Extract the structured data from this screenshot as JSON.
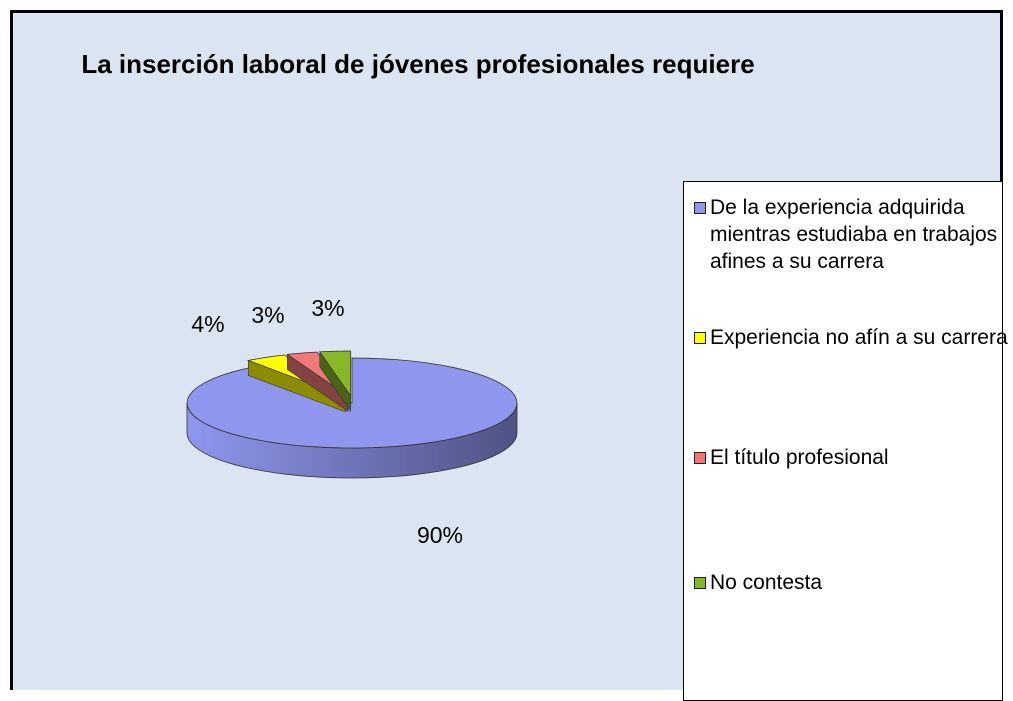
{
  "chart_data": {
    "type": "pie",
    "title": "La inserción laboral de jóvenes profesionales requiere",
    "categories": [
      "De la experiencia adquirida mientras estudiaba en trabajos afines a su carrera",
      "Experiencia no afín a su carrera",
      "El título profesional",
      "No contesta"
    ],
    "values": [
      90,
      4,
      3,
      3
    ],
    "value_labels": [
      "90%",
      "4%",
      "3%",
      "3%"
    ],
    "colors": [
      "#9096ee",
      "#ffff00",
      "#f07878",
      "#88b828"
    ]
  }
}
